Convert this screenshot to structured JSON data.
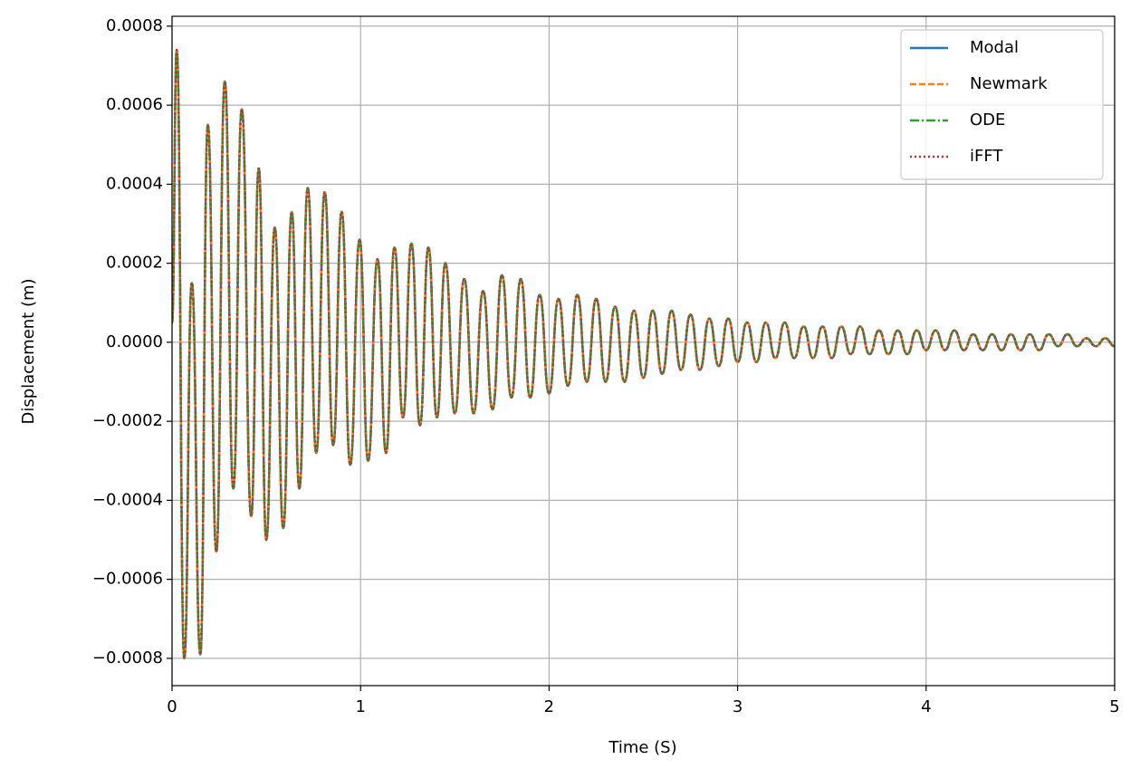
{
  "chart_data": {
    "type": "line",
    "xlabel": "Time (S)",
    "ylabel": "Displacement (m)",
    "x": [
      0,
      0.025,
      0.065,
      0.105,
      0.15,
      0.19,
      0.235,
      0.28,
      0.325,
      0.37,
      0.42,
      0.46,
      0.5,
      0.545,
      0.59,
      0.635,
      0.675,
      0.72,
      0.765,
      0.81,
      0.855,
      0.9,
      0.945,
      0.995,
      1.04,
      1.09,
      1.135,
      1.18,
      1.225,
      1.27,
      1.315,
      1.36,
      1.405,
      1.45,
      1.5,
      1.55,
      1.6,
      1.65,
      1.7,
      1.75,
      1.8,
      1.85,
      1.9,
      1.95,
      2.0,
      2.05,
      2.1,
      2.15,
      2.2,
      2.25,
      2.3,
      2.35,
      2.4,
      2.45,
      2.5,
      2.55,
      2.6,
      2.65,
      2.7,
      2.75,
      2.8,
      2.85,
      2.9,
      2.95,
      3.0,
      3.05,
      3.1,
      3.15,
      3.2,
      3.25,
      3.3,
      3.35,
      3.4,
      3.45,
      3.5,
      3.55,
      3.6,
      3.65,
      3.7,
      3.75,
      3.8,
      3.85,
      3.9,
      3.95,
      4.0,
      4.05,
      4.1,
      4.15,
      4.2,
      4.25,
      4.3,
      4.35,
      4.4,
      4.45,
      4.5,
      4.55,
      4.6,
      4.65,
      4.7,
      4.75,
      4.8,
      4.85,
      4.9,
      4.95,
      5.0
    ],
    "series": [
      {
        "name": "Modal",
        "color": "#1f77b4",
        "linestyle": "solid",
        "values": [
          5e-05,
          0.00074,
          -0.0008,
          0.00015,
          -0.00079,
          0.00055,
          -0.00053,
          0.00066,
          -0.00037,
          0.00059,
          -0.00044,
          0.00044,
          -0.0005,
          0.00029,
          -0.00047,
          0.00033,
          -0.00037,
          0.00039,
          -0.00028,
          0.00038,
          -0.00026,
          0.00033,
          -0.00031,
          0.00026,
          -0.0003,
          0.00021,
          -0.00028,
          0.00024,
          -0.00019,
          0.00025,
          -0.00021,
          0.00024,
          -0.00019,
          0.0002,
          -0.00018,
          0.00016,
          -0.00018,
          0.00013,
          -0.00017,
          0.00017,
          -0.00014,
          0.00016,
          -0.00014,
          0.00012,
          -0.00013,
          0.00011,
          -0.00011,
          0.00012,
          -0.0001,
          0.00011,
          -0.0001,
          9e-05,
          -0.0001,
          8e-05,
          -9e-05,
          8e-05,
          -8e-05,
          8e-05,
          -7e-05,
          7e-05,
          -7e-05,
          6e-05,
          -6e-05,
          6e-05,
          -5e-05,
          5e-05,
          -5e-05,
          5e-05,
          -4e-05,
          5e-05,
          -4e-05,
          4e-05,
          -4e-05,
          4e-05,
          -4e-05,
          4e-05,
          -3e-05,
          4e-05,
          -3e-05,
          3e-05,
          -3e-05,
          3e-05,
          -3e-05,
          3e-05,
          -2e-05,
          3e-05,
          -2e-05,
          3e-05,
          -2e-05,
          2e-05,
          -2e-05,
          2e-05,
          -2e-05,
          2e-05,
          -2e-05,
          2e-05,
          -2e-05,
          2e-05,
          -1e-05,
          2e-05,
          -1e-05,
          1e-05,
          -1e-05,
          1e-05,
          -1e-05
        ]
      },
      {
        "name": "Newmark",
        "color": "#ff7f0e",
        "linestyle": "dashed",
        "values": [
          5e-05,
          0.00074,
          -0.0008,
          0.00015,
          -0.00079,
          0.00055,
          -0.00053,
          0.00066,
          -0.00037,
          0.00059,
          -0.00044,
          0.00044,
          -0.0005,
          0.00029,
          -0.00047,
          0.00033,
          -0.00037,
          0.00039,
          -0.00028,
          0.00038,
          -0.00026,
          0.00033,
          -0.00031,
          0.00026,
          -0.0003,
          0.00021,
          -0.00028,
          0.00024,
          -0.00019,
          0.00025,
          -0.00021,
          0.00024,
          -0.00019,
          0.0002,
          -0.00018,
          0.00016,
          -0.00018,
          0.00013,
          -0.00017,
          0.00017,
          -0.00014,
          0.00016,
          -0.00014,
          0.00012,
          -0.00013,
          0.00011,
          -0.00011,
          0.00012,
          -0.0001,
          0.00011,
          -0.0001,
          9e-05,
          -0.0001,
          8e-05,
          -9e-05,
          8e-05,
          -8e-05,
          8e-05,
          -7e-05,
          7e-05,
          -7e-05,
          6e-05,
          -6e-05,
          6e-05,
          -5e-05,
          5e-05,
          -5e-05,
          5e-05,
          -4e-05,
          5e-05,
          -4e-05,
          4e-05,
          -4e-05,
          4e-05,
          -4e-05,
          4e-05,
          -3e-05,
          4e-05,
          -3e-05,
          3e-05,
          -3e-05,
          3e-05,
          -3e-05,
          3e-05,
          -2e-05,
          3e-05,
          -2e-05,
          3e-05,
          -2e-05,
          2e-05,
          -2e-05,
          2e-05,
          -2e-05,
          2e-05,
          -2e-05,
          2e-05,
          -2e-05,
          2e-05,
          -1e-05,
          2e-05,
          -1e-05,
          1e-05,
          -1e-05,
          1e-05,
          -1e-05
        ]
      },
      {
        "name": "ODE",
        "color": "#2ca02c",
        "linestyle": "dashdot",
        "values": [
          5e-05,
          0.00074,
          -0.0008,
          0.00015,
          -0.00079,
          0.00055,
          -0.00053,
          0.00066,
          -0.00037,
          0.00059,
          -0.00044,
          0.00044,
          -0.0005,
          0.00029,
          -0.00047,
          0.00033,
          -0.00037,
          0.00039,
          -0.00028,
          0.00038,
          -0.00026,
          0.00033,
          -0.00031,
          0.00026,
          -0.0003,
          0.00021,
          -0.00028,
          0.00024,
          -0.00019,
          0.00025,
          -0.00021,
          0.00024,
          -0.00019,
          0.0002,
          -0.00018,
          0.00016,
          -0.00018,
          0.00013,
          -0.00017,
          0.00017,
          -0.00014,
          0.00016,
          -0.00014,
          0.00012,
          -0.00013,
          0.00011,
          -0.00011,
          0.00012,
          -0.0001,
          0.00011,
          -0.0001,
          9e-05,
          -0.0001,
          8e-05,
          -9e-05,
          8e-05,
          -8e-05,
          8e-05,
          -7e-05,
          7e-05,
          -7e-05,
          6e-05,
          -6e-05,
          6e-05,
          -5e-05,
          5e-05,
          -5e-05,
          5e-05,
          -4e-05,
          5e-05,
          -4e-05,
          4e-05,
          -4e-05,
          4e-05,
          -4e-05,
          4e-05,
          -3e-05,
          4e-05,
          -3e-05,
          3e-05,
          -3e-05,
          3e-05,
          -3e-05,
          3e-05,
          -2e-05,
          3e-05,
          -2e-05,
          3e-05,
          -2e-05,
          2e-05,
          -2e-05,
          2e-05,
          -2e-05,
          2e-05,
          -2e-05,
          2e-05,
          -2e-05,
          2e-05,
          -1e-05,
          2e-05,
          -1e-05,
          1e-05,
          -1e-05,
          1e-05,
          -1e-05
        ]
      },
      {
        "name": "iFFT",
        "color": "#d62728",
        "linestyle": "dotted",
        "values": [
          5e-05,
          0.00074,
          -0.0008,
          0.00015,
          -0.00079,
          0.00055,
          -0.00053,
          0.00066,
          -0.00037,
          0.00059,
          -0.00044,
          0.00044,
          -0.0005,
          0.00029,
          -0.00047,
          0.00033,
          -0.00037,
          0.00039,
          -0.00028,
          0.00038,
          -0.00026,
          0.00033,
          -0.00031,
          0.00026,
          -0.0003,
          0.00021,
          -0.00028,
          0.00024,
          -0.00019,
          0.00025,
          -0.00021,
          0.00024,
          -0.00019,
          0.0002,
          -0.00018,
          0.00016,
          -0.00018,
          0.00013,
          -0.00017,
          0.00017,
          -0.00014,
          0.00016,
          -0.00014,
          0.00012,
          -0.00013,
          0.00011,
          -0.00011,
          0.00012,
          -0.0001,
          0.00011,
          -0.0001,
          9e-05,
          -0.0001,
          8e-05,
          -9e-05,
          8e-05,
          -8e-05,
          8e-05,
          -7e-05,
          7e-05,
          -7e-05,
          6e-05,
          -6e-05,
          6e-05,
          -5e-05,
          5e-05,
          -5e-05,
          5e-05,
          -4e-05,
          5e-05,
          -4e-05,
          4e-05,
          -4e-05,
          4e-05,
          -4e-05,
          4e-05,
          -3e-05,
          4e-05,
          -3e-05,
          3e-05,
          -3e-05,
          3e-05,
          -3e-05,
          3e-05,
          -2e-05,
          3e-05,
          -2e-05,
          3e-05,
          -2e-05,
          2e-05,
          -2e-05,
          2e-05,
          -2e-05,
          2e-05,
          -2e-05,
          2e-05,
          -2e-05,
          2e-05,
          -1e-05,
          2e-05,
          -1e-05,
          1e-05,
          -1e-05,
          1e-05,
          -1e-05
        ]
      }
    ],
    "xlim": [
      0,
      5
    ],
    "xticks": [
      0,
      1,
      2,
      3,
      4,
      5
    ],
    "ylim": [
      -0.000869,
      0.000825
    ],
    "yticks": [
      {
        "value": -0.0008,
        "label": "−0.0008"
      },
      {
        "value": -0.0006,
        "label": "−0.0006"
      },
      {
        "value": -0.0004,
        "label": "−0.0004"
      },
      {
        "value": -0.0002,
        "label": "−0.0002"
      },
      {
        "value": 0,
        "label": "0.0000"
      },
      0.0002,
      0.0004,
      0.0006,
      0.0008
    ],
    "grid": true,
    "legend": "upper right"
  }
}
